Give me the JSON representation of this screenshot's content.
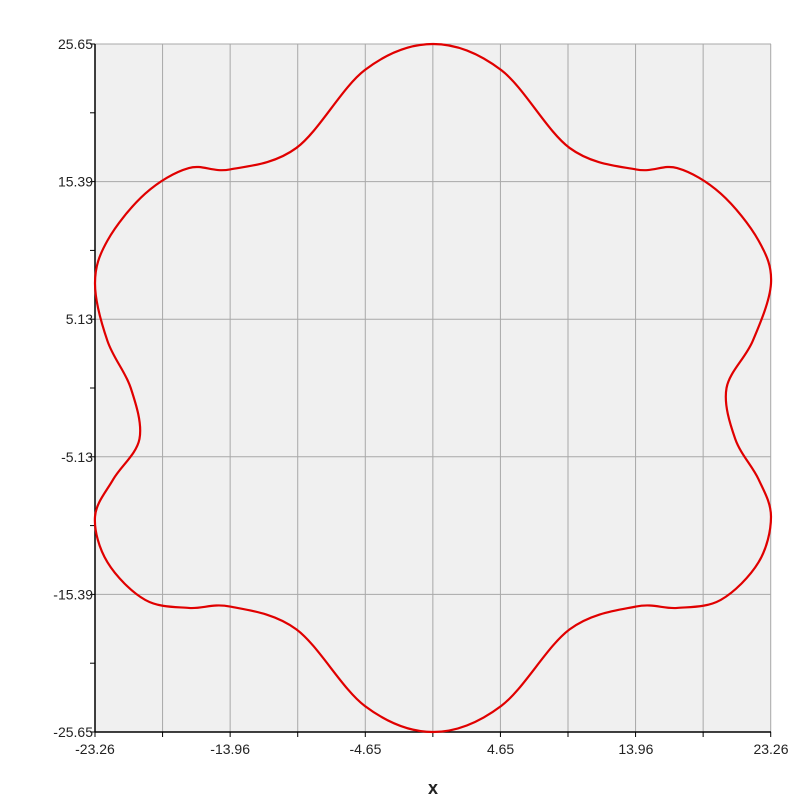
{
  "chart_data": {
    "type": "line",
    "title": "",
    "xlabel": "x",
    "ylabel": "",
    "xlim": [
      -23.26,
      23.26
    ],
    "ylim": [
      -25.65,
      25.65
    ],
    "x_ticks": [
      -23.26,
      -13.96,
      -4.65,
      4.65,
      13.96,
      23.26
    ],
    "x_tick_labels": [
      "-23.26",
      "-13.96",
      "-4.65",
      "4.65",
      "13.96",
      "23.26"
    ],
    "y_ticks": [
      25.65,
      15.39,
      5.13,
      -5.13,
      -15.39,
      -25.65
    ],
    "y_tick_labels": [
      "25.65",
      "15.39",
      "5.13",
      "-5.13",
      "-15.39",
      "-25.65"
    ],
    "grid": true,
    "legend": "none",
    "series": [
      {
        "color": "#e00000",
        "closed": true,
        "x": [
          0.0,
          4.7,
          9.4,
          13.96,
          16.8,
          19.8,
          22.4,
          23.26,
          22.0,
          20.2,
          20.8,
          22.4,
          23.26,
          22.4,
          19.8,
          16.8,
          13.96,
          9.4,
          4.7,
          0.0,
          -4.7,
          -9.4,
          -13.96,
          -16.8,
          -19.8,
          -22.4,
          -23.26,
          -22.0,
          -20.2,
          -20.8,
          -22.4,
          -23.26,
          -22.4,
          -19.8,
          -16.8,
          -13.96,
          -9.4,
          -4.7,
          0.0
        ],
        "y": [
          25.65,
          23.7,
          17.9,
          16.3,
          16.4,
          14.5,
          11.0,
          7.8,
          3.5,
          0.0,
          -3.8,
          -6.8,
          -9.6,
          -13.0,
          -15.8,
          -16.4,
          -16.3,
          -18.0,
          -23.7,
          -25.65,
          -23.7,
          -18.0,
          -16.3,
          -16.4,
          -15.8,
          -13.0,
          -9.6,
          -6.8,
          -3.8,
          0.0,
          3.5,
          7.8,
          11.0,
          14.5,
          16.4,
          16.3,
          17.9,
          23.7,
          25.65
        ]
      }
    ]
  }
}
